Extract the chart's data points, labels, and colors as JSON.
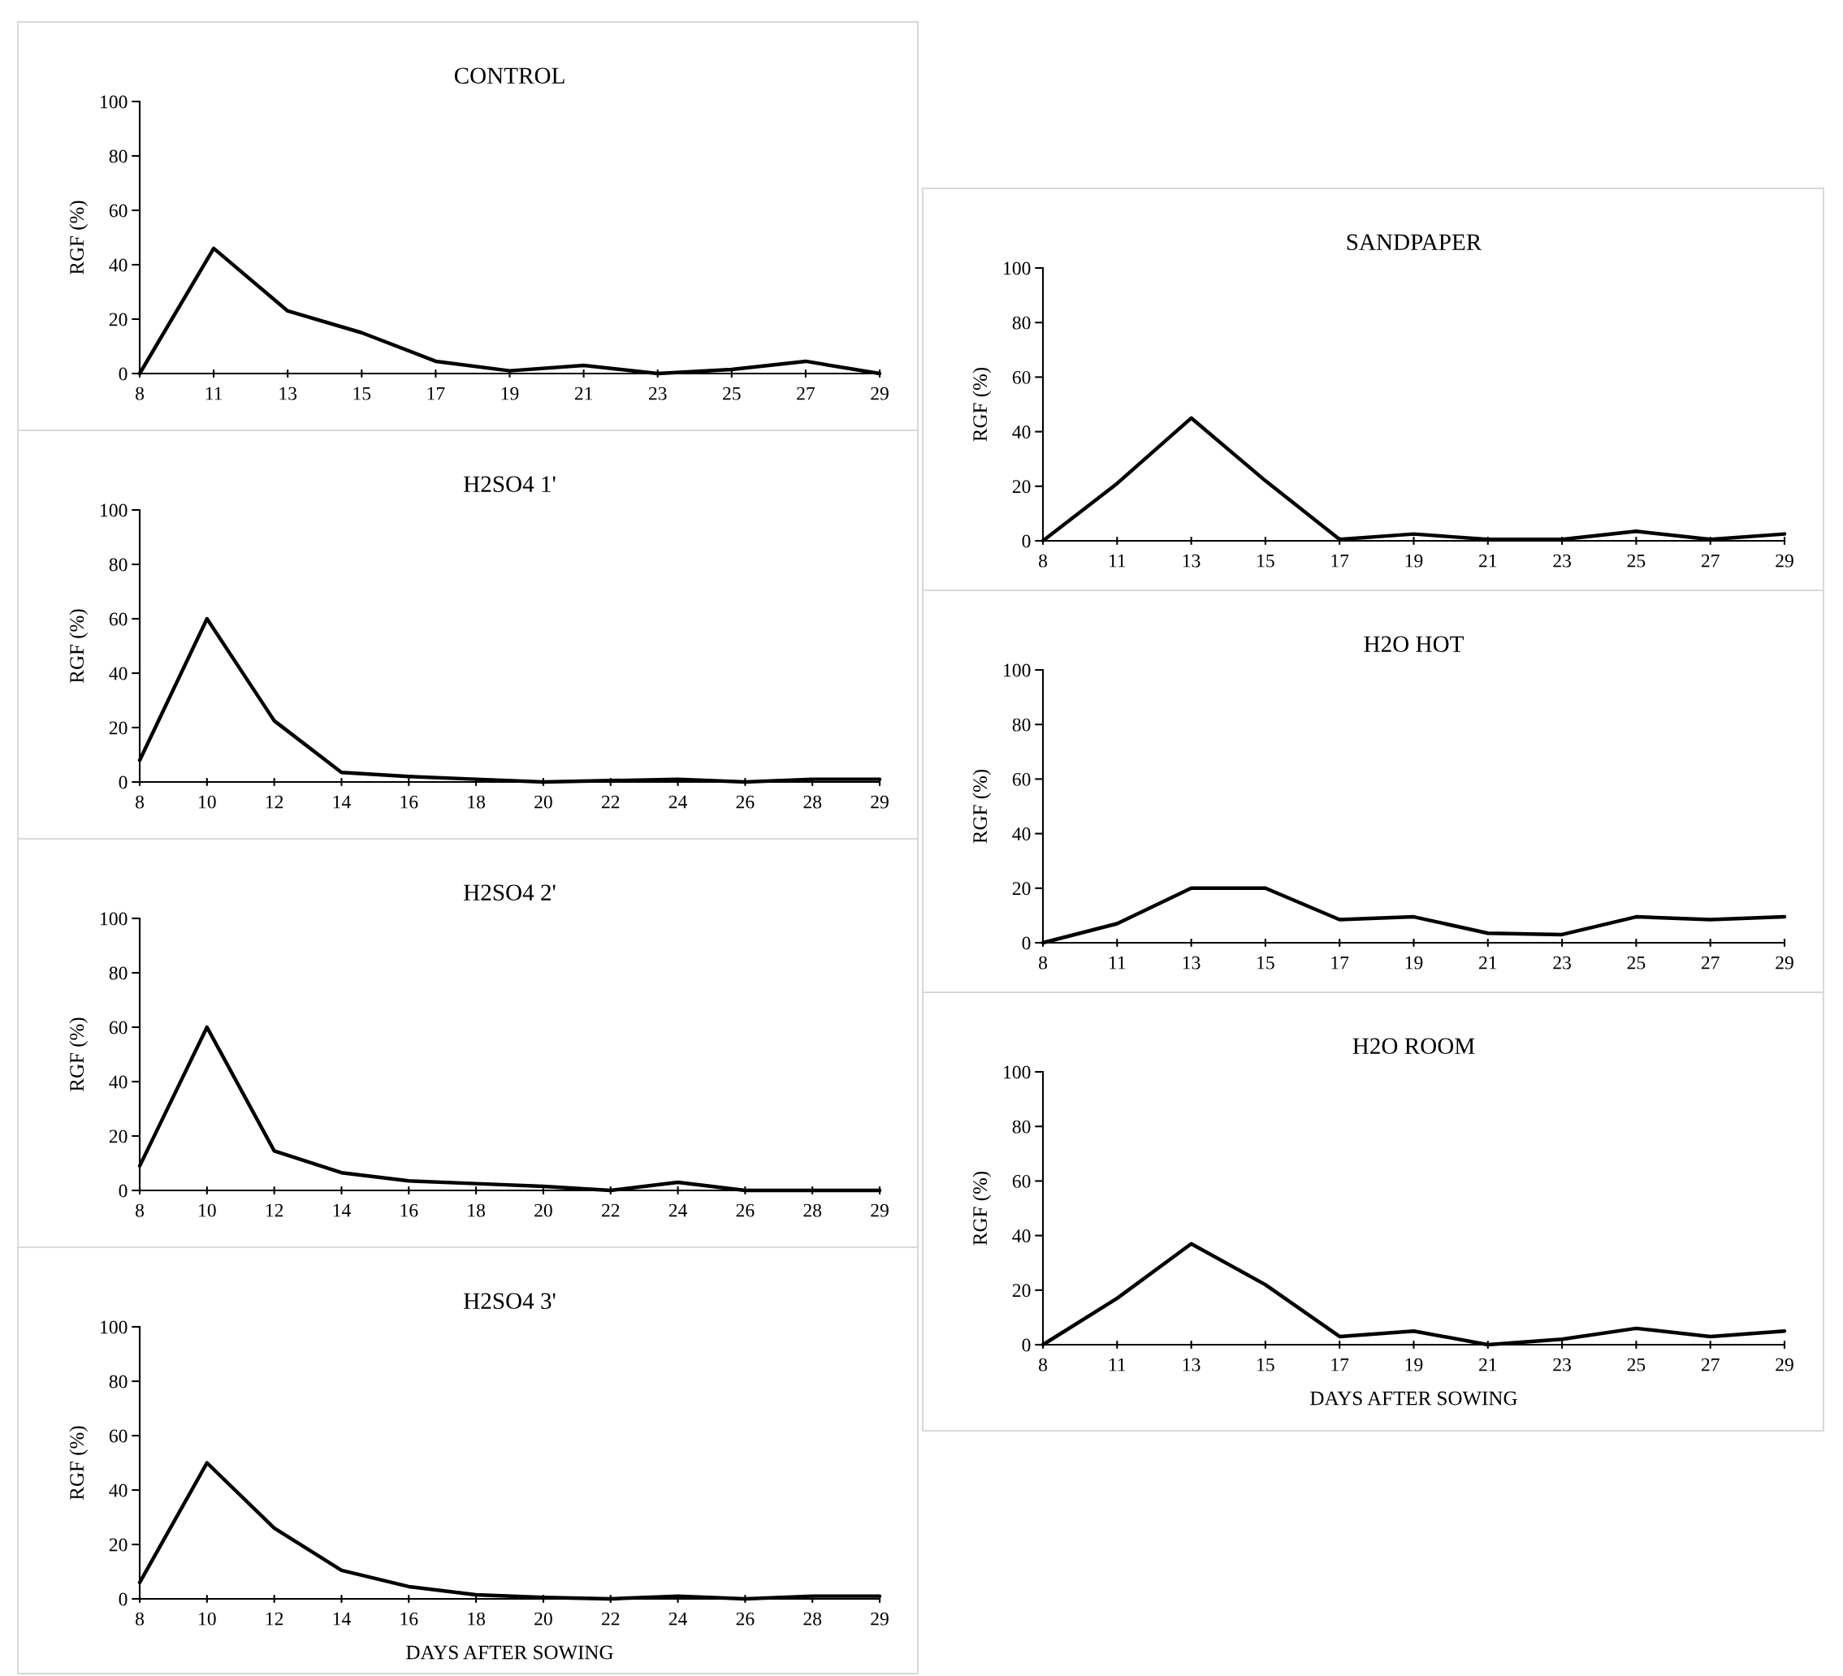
{
  "chart_data": [
    {
      "type": "line",
      "title": "CONTROL",
      "ylabel": "RGF (%)",
      "categories": [
        "8",
        "11",
        "13",
        "15",
        "17",
        "19",
        "21",
        "23",
        "25",
        "27",
        "29"
      ],
      "series": [
        {
          "color": "#000000",
          "values": [
            0,
            46,
            23,
            15,
            4.5,
            1,
            3,
            0,
            1.5,
            4.5,
            0
          ]
        }
      ],
      "ylim": [
        0,
        100
      ],
      "yticks": [
        0,
        20,
        40,
        60,
        80,
        100
      ]
    },
    {
      "type": "line",
      "title": "H2SO4 1'",
      "ylabel": "RGF (%)",
      "categories": [
        "8",
        "10",
        "12",
        "14",
        "16",
        "18",
        "20",
        "22",
        "24",
        "26",
        "28",
        "29"
      ],
      "series": [
        {
          "color": "#000000",
          "values": [
            8,
            60,
            22.5,
            3.5,
            2,
            1,
            0,
            0.5,
            1,
            0,
            1,
            1
          ]
        }
      ],
      "ylim": [
        0,
        100
      ],
      "yticks": [
        0,
        20,
        40,
        60,
        80,
        100
      ]
    },
    {
      "type": "line",
      "title": "H2SO4 2'",
      "ylabel": "RGF (%)",
      "categories": [
        "8",
        "10",
        "12",
        "14",
        "16",
        "18",
        "20",
        "22",
        "24",
        "26",
        "28",
        "29"
      ],
      "series": [
        {
          "color": "#000000",
          "values": [
            9,
            60,
            14.5,
            6.5,
            3.5,
            2.5,
            1.5,
            0,
            3,
            0,
            0,
            0
          ]
        }
      ],
      "ylim": [
        0,
        100
      ],
      "yticks": [
        0,
        20,
        40,
        60,
        80,
        100
      ]
    },
    {
      "type": "line",
      "title": "H2SO4 3'",
      "ylabel": "RGF (%)",
      "xlabel": "DAYS AFTER SOWING",
      "categories": [
        "8",
        "10",
        "12",
        "14",
        "16",
        "18",
        "20",
        "22",
        "24",
        "26",
        "28",
        "29"
      ],
      "series": [
        {
          "color": "#000000",
          "values": [
            6,
            50,
            26,
            10.5,
            4.5,
            1.5,
            0.5,
            0,
            1,
            0,
            1,
            1
          ]
        }
      ],
      "ylim": [
        0,
        100
      ],
      "yticks": [
        0,
        20,
        40,
        60,
        80,
        100
      ]
    },
    {
      "type": "line",
      "title": "SANDPAPER",
      "ylabel": "RGF (%)",
      "categories": [
        "8",
        "11",
        "13",
        "15",
        "17",
        "19",
        "21",
        "23",
        "25",
        "27",
        "29"
      ],
      "series": [
        {
          "color": "#000000",
          "values": [
            0,
            21,
            45,
            22,
            0.5,
            2.5,
            0.5,
            0.5,
            3.5,
            0.5,
            2.5
          ]
        }
      ],
      "ylim": [
        0,
        100
      ],
      "yticks": [
        0,
        20,
        40,
        60,
        80,
        100
      ]
    },
    {
      "type": "line",
      "title": "H2O HOT",
      "ylabel": "RGF (%)",
      "categories": [
        "8",
        "11",
        "13",
        "15",
        "17",
        "19",
        "21",
        "23",
        "25",
        "27",
        "29"
      ],
      "series": [
        {
          "color": "#000000",
          "values": [
            0,
            7,
            20,
            20,
            8.5,
            9.5,
            3.5,
            3,
            9.5,
            8.5,
            9.5
          ]
        }
      ],
      "ylim": [
        0,
        100
      ],
      "yticks": [
        0,
        20,
        40,
        60,
        80,
        100
      ]
    },
    {
      "type": "line",
      "title": "H2O ROOM",
      "ylabel": "RGF (%)",
      "xlabel": "DAYS AFTER SOWING",
      "categories": [
        "8",
        "11",
        "13",
        "15",
        "17",
        "19",
        "21",
        "23",
        "25",
        "27",
        "29"
      ],
      "series": [
        {
          "color": "#000000",
          "values": [
            0,
            17,
            37,
            22,
            3,
            5,
            0,
            2,
            6,
            3,
            5
          ]
        }
      ],
      "ylim": [
        0,
        100
      ],
      "yticks": [
        0,
        20,
        40,
        60,
        80,
        100
      ]
    }
  ]
}
